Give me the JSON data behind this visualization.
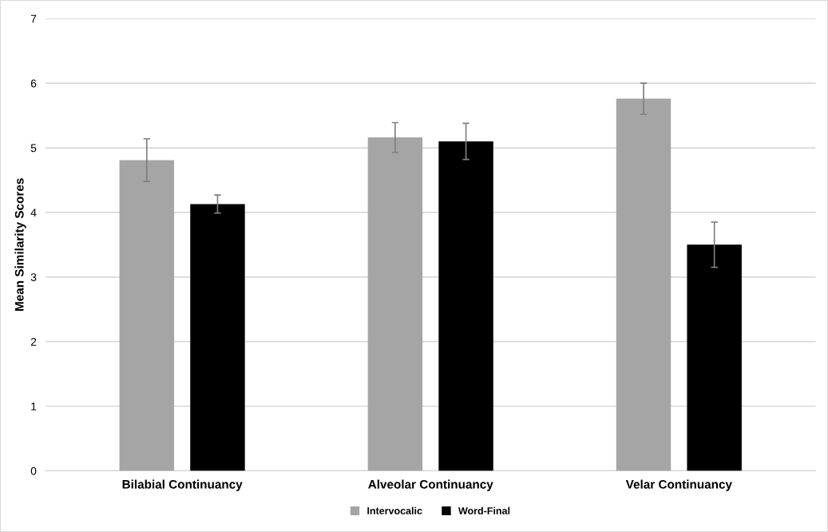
{
  "chart_data": {
    "type": "bar",
    "ylabel": "Mean Similarity Scores",
    "categories": [
      "Bilabial Continuancy",
      "Alveolar Continuancy",
      "Velar Continuancy"
    ],
    "series": [
      {
        "name": "Intervocalic",
        "color": "#a5a5a5",
        "values": [
          4.81,
          5.16,
          5.76
        ],
        "errors": [
          0.33,
          0.23,
          0.24
        ]
      },
      {
        "name": "Word-Final",
        "color": "#000000",
        "values": [
          4.13,
          5.1,
          3.5
        ],
        "errors": [
          0.14,
          0.28,
          0.35
        ]
      }
    ],
    "ylim": [
      0,
      7
    ],
    "yticks": [
      0,
      1,
      2,
      3,
      4,
      5,
      6,
      7
    ],
    "grid": "y",
    "legend": "bottom"
  }
}
